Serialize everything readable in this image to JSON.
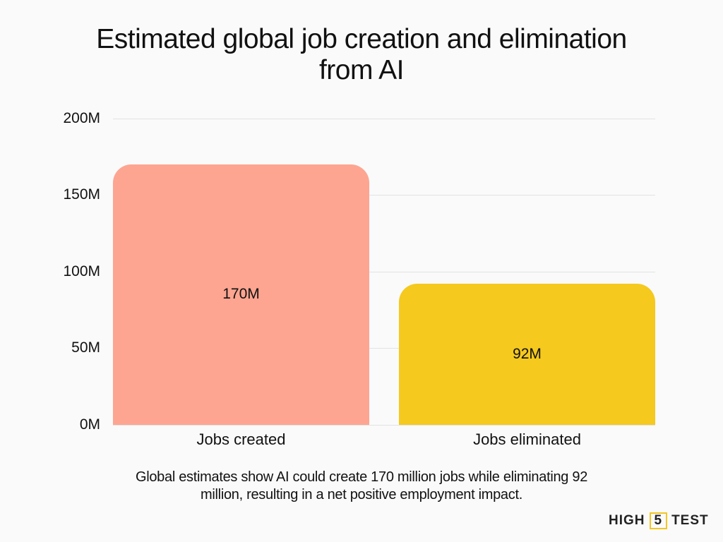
{
  "chart_data": {
    "type": "bar",
    "title": "Estimated global job creation and elimination from AI",
    "categories": [
      "Jobs created",
      "Jobs eliminated"
    ],
    "values": [
      170,
      92
    ],
    "value_labels": [
      "170M",
      "92M"
    ],
    "unit": "M",
    "colors": [
      "#fda591",
      "#f5c91d"
    ],
    "xlabel": "",
    "ylabel": "",
    "ylim": [
      0,
      200
    ],
    "yticks": [
      "0M",
      "50M",
      "100M",
      "150M",
      "200M"
    ],
    "grid": true,
    "legend": "none"
  },
  "title_line1": "Estimated global job creation and elimination",
  "title_line2": "from AI",
  "caption_line1": "Global estimates show AI could create 170 million jobs while eliminating 92",
  "caption_line2": "million, resulting in a net positive employment impact.",
  "logo": {
    "left": "HIGH",
    "mid": "5",
    "right": "TEST",
    "accent": "#f3c623"
  }
}
